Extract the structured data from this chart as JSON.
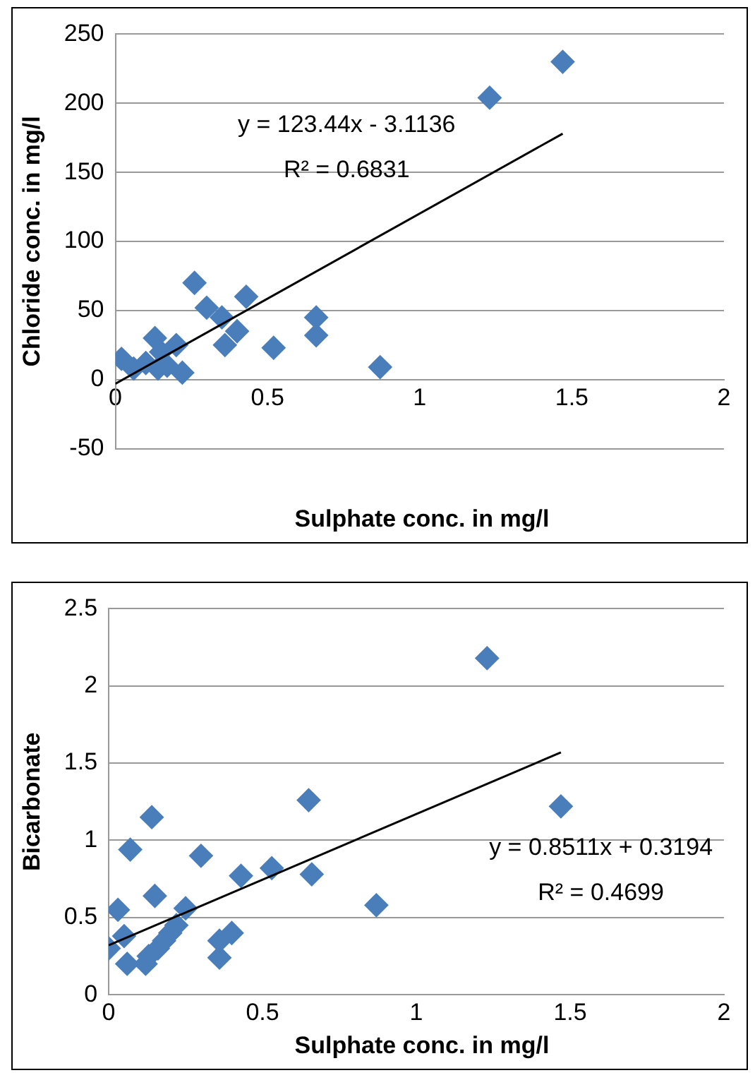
{
  "chart_data": [
    {
      "type": "scatter",
      "xlabel": "Sulphate conc. in mg/l",
      "ylabel": "Chloride conc. in mg/l",
      "xlim": [
        0,
        2
      ],
      "xticks": [
        0,
        0.5,
        1,
        1.5,
        2
      ],
      "ylim": [
        -50,
        250
      ],
      "yticks": [
        -50,
        0,
        50,
        100,
        150,
        200,
        250
      ],
      "grid": "y",
      "legend": false,
      "series": [
        {
          "marker": "diamond",
          "color": "#4a7ebb",
          "x": [
            0.02,
            0.06,
            0.1,
            0.13,
            0.14,
            0.15,
            0.17,
            0.2,
            0.22,
            0.26,
            0.3,
            0.35,
            0.36,
            0.4,
            0.43,
            0.52,
            0.66,
            0.66,
            0.87,
            1.23,
            1.47
          ],
          "values": [
            15,
            8,
            12,
            30,
            8,
            20,
            10,
            25,
            5,
            70,
            52,
            45,
            25,
            35,
            60,
            23,
            45,
            32,
            9,
            204,
            230
          ]
        },
        {
          "type": "line",
          "marker": "none",
          "color": "#000000",
          "x": [
            0,
            1.47
          ],
          "values": [
            -3,
            178
          ]
        }
      ],
      "annotations": [
        "y = 123.44x - 3.1136",
        "R² = 0.6831"
      ]
    },
    {
      "type": "scatter",
      "xlabel": "Sulphate conc. in mg/l",
      "ylabel": "Bicarbonate",
      "xlim": [
        0,
        2
      ],
      "xticks": [
        0,
        0.5,
        1,
        1.5,
        2
      ],
      "ylim": [
        0,
        2.5
      ],
      "yticks": [
        0,
        0.5,
        1,
        1.5,
        2,
        2.5
      ],
      "grid": "y",
      "legend": false,
      "series": [
        {
          "marker": "diamond",
          "color": "#4a7ebb",
          "x": [
            0,
            0.03,
            0.05,
            0.06,
            0.07,
            0.12,
            0.13,
            0.14,
            0.15,
            0.16,
            0.18,
            0.2,
            0.22,
            0.25,
            0.3,
            0.36,
            0.36,
            0.4,
            0.43,
            0.53,
            0.65,
            0.66,
            0.87,
            1.23,
            1.47
          ],
          "values": [
            0.3,
            0.55,
            0.38,
            0.2,
            0.94,
            0.2,
            0.25,
            1.15,
            0.64,
            0.3,
            0.35,
            0.4,
            0.45,
            0.56,
            0.9,
            0.35,
            0.24,
            0.4,
            0.77,
            0.82,
            1.26,
            0.78,
            0.58,
            2.18,
            1.22
          ]
        },
        {
          "type": "line",
          "marker": "none",
          "color": "#000000",
          "x": [
            0,
            1.47
          ],
          "values": [
            0.32,
            1.57
          ]
        }
      ],
      "annotations": [
        "y = 0.8511x + 0.3194",
        "R² = 0.4699"
      ]
    }
  ]
}
